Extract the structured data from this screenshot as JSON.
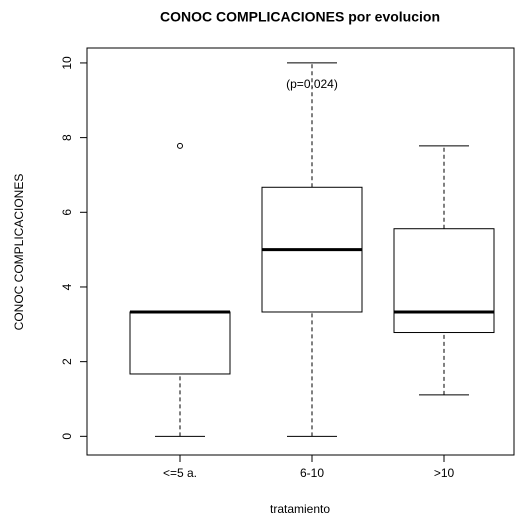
{
  "chart_data": {
    "type": "boxplot",
    "title": "CONOC COMPLICACIONES por evolucion",
    "x_label": "tratamiento",
    "y_label": "CONOC COMPLICACIONES",
    "annotation": "(p=0.024)",
    "categories": [
      "<=5 a.",
      "6-10",
      ">10"
    ],
    "boxes": [
      {
        "whislo": 0,
        "q1": 1.67,
        "median": 3.33,
        "q3": 3.33,
        "whishi": 3.33,
        "outliers": [
          7.78
        ]
      },
      {
        "whislo": 0,
        "q1": 3.33,
        "median": 5,
        "q3": 6.67,
        "whishi": 10,
        "outliers": []
      },
      {
        "whislo": 1.11,
        "q1": 2.78,
        "median": 3.33,
        "q3": 5.56,
        "whishi": 7.78,
        "outliers": []
      }
    ],
    "ylim": [
      -0.5,
      10.4
    ],
    "yticks": [
      0,
      2,
      4,
      6,
      8,
      10
    ]
  }
}
